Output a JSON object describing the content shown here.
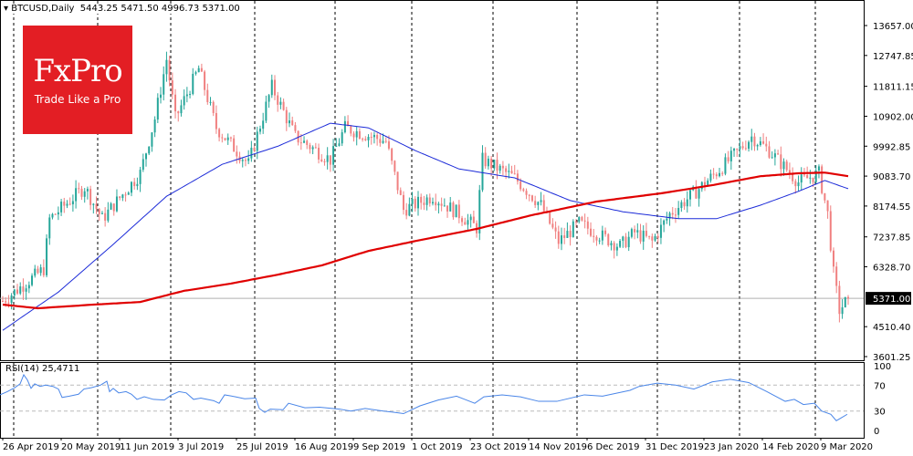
{
  "header": {
    "symbol": "BTCUSD,Daily",
    "open": "5443.25",
    "high": "5471.50",
    "low": "4996.73",
    "close": "5371.00"
  },
  "logo": {
    "brand": "FxPro",
    "tagline": "Trade Like a Pro"
  },
  "colors": {
    "bull": "#26a69a",
    "bear": "#f08080",
    "ma_fast": "#1c2bd8",
    "ma_slow": "#e00000",
    "rsi": "#4a86e8",
    "logo_bg": "#e31e24"
  },
  "chart_data": {
    "type": "candlestick",
    "title": "BTCUSD,Daily",
    "price_axis_ticks": [
      "13657.00",
      "12747.85",
      "11811.15",
      "10902.00",
      "9992.85",
      "9083.70",
      "8174.55",
      "7237.85",
      "6328.70",
      "4510.40",
      "3601.25"
    ],
    "ylim": [
      3601.25,
      13657.0
    ],
    "current_price": "5371.00",
    "x_tick_labels": [
      "26 Apr 2019",
      "20 May 2019",
      "11 Jun 2019",
      "3 Jul 2019",
      "25 Jul 2019",
      "16 Aug 2019",
      "9 Sep 2019",
      "1 Oct 2019",
      "23 Oct 2019",
      "14 Nov 2019",
      "6 Dec 2019",
      "31 Dec 2019",
      "23 Jan 2020",
      "14 Feb 2020",
      "9 Mar 2020"
    ],
    "bars_total": 290,
    "close_keypoints": [
      [
        0,
        5290
      ],
      [
        14,
        6260
      ],
      [
        16,
        7780
      ],
      [
        28,
        8750
      ],
      [
        34,
        7780
      ],
      [
        47,
        9170
      ],
      [
        52,
        10830
      ],
      [
        56,
        12630
      ],
      [
        59,
        10830
      ],
      [
        67,
        12350
      ],
      [
        73,
        10550
      ],
      [
        84,
        9450
      ],
      [
        92,
        11800
      ],
      [
        100,
        10280
      ],
      [
        112,
        9580
      ],
      [
        117,
        10550
      ],
      [
        131,
        10140
      ],
      [
        137,
        8060
      ],
      [
        147,
        8480
      ],
      [
        156,
        7930
      ],
      [
        162,
        7510
      ],
      [
        164,
        9580
      ],
      [
        175,
        9030
      ],
      [
        184,
        8200
      ],
      [
        190,
        7090
      ],
      [
        197,
        7650
      ],
      [
        211,
        6950
      ],
      [
        216,
        7370
      ],
      [
        222,
        7090
      ],
      [
        228,
        7930
      ],
      [
        237,
        8620
      ],
      [
        247,
        9450
      ],
      [
        256,
        10280
      ],
      [
        262,
        9860
      ],
      [
        272,
        8900
      ],
      [
        279,
        9170
      ],
      [
        282,
        7930
      ],
      [
        284,
        6120
      ],
      [
        286,
        5010
      ],
      [
        289,
        5371
      ]
    ],
    "ma_fast": {
      "name": "MA fast (blue)",
      "keypoints": [
        [
          0,
          4400
        ],
        [
          19,
          5560
        ],
        [
          37,
          6950
        ],
        [
          56,
          8470
        ],
        [
          75,
          9440
        ],
        [
          94,
          9990
        ],
        [
          112,
          10690
        ],
        [
          125,
          10550
        ],
        [
          141,
          9860
        ],
        [
          156,
          9300
        ],
        [
          175,
          9030
        ],
        [
          194,
          8340
        ],
        [
          212,
          8000
        ],
        [
          231,
          7790
        ],
        [
          244,
          7790
        ],
        [
          259,
          8200
        ],
        [
          272,
          8620
        ],
        [
          281,
          8950
        ],
        [
          289,
          8700
        ]
      ]
    },
    "ma_slow": {
      "name": "MA slow (red)",
      "keypoints": [
        [
          0,
          5180
        ],
        [
          12,
          5070
        ],
        [
          31,
          5180
        ],
        [
          47,
          5260
        ],
        [
          62,
          5600
        ],
        [
          78,
          5820
        ],
        [
          94,
          6090
        ],
        [
          109,
          6370
        ],
        [
          125,
          6810
        ],
        [
          141,
          7110
        ],
        [
          162,
          7480
        ],
        [
          181,
          7900
        ],
        [
          203,
          8310
        ],
        [
          225,
          8560
        ],
        [
          244,
          8830
        ],
        [
          259,
          9080
        ],
        [
          272,
          9170
        ],
        [
          281,
          9190
        ],
        [
          289,
          9080
        ]
      ]
    },
    "rsi": {
      "label": "RSI(14) 25,4711",
      "value": "25.4711",
      "levels": [
        30,
        70
      ],
      "ticks": [
        "100",
        "70",
        "30",
        "0"
      ],
      "keypoints": [
        [
          0,
          55
        ],
        [
          8,
          60
        ],
        [
          16,
          66
        ],
        [
          22,
          72
        ],
        [
          26,
          86
        ],
        [
          30,
          78
        ],
        [
          34,
          65
        ],
        [
          38,
          72
        ],
        [
          44,
          68
        ],
        [
          50,
          70
        ],
        [
          58,
          68
        ],
        [
          64,
          64
        ],
        [
          68,
          51
        ],
        [
          76,
          53
        ],
        [
          86,
          56
        ],
        [
          92,
          64
        ],
        [
          100,
          66
        ],
        [
          110,
          70
        ],
        [
          117,
          76
        ],
        [
          120,
          60
        ],
        [
          124,
          65
        ],
        [
          130,
          58
        ],
        [
          138,
          60
        ],
        [
          144,
          56
        ],
        [
          150,
          48
        ],
        [
          158,
          52
        ],
        [
          168,
          48
        ],
        [
          180,
          47
        ],
        [
          188,
          55
        ],
        [
          196,
          60
        ],
        [
          204,
          58
        ],
        [
          212,
          48
        ],
        [
          220,
          50
        ],
        [
          234,
          46
        ],
        [
          240,
          42
        ],
        [
          246,
          55
        ],
        [
          258,
          52
        ],
        [
          268,
          49
        ],
        [
          280,
          50
        ],
        [
          284,
          34
        ],
        [
          290,
          28
        ],
        [
          296,
          33
        ],
        [
          310,
          32
        ],
        [
          316,
          42
        ],
        [
          334,
          35
        ],
        [
          350,
          36
        ],
        [
          372,
          33
        ],
        [
          384,
          30
        ],
        [
          400,
          34
        ],
        [
          420,
          30
        ],
        [
          432,
          28
        ],
        [
          442,
          26
        ],
        [
          460,
          38
        ],
        [
          480,
          47
        ],
        [
          500,
          53
        ],
        [
          520,
          42
        ],
        [
          530,
          52
        ],
        [
          550,
          55
        ],
        [
          570,
          52
        ],
        [
          590,
          45
        ],
        [
          610,
          45
        ],
        [
          640,
          55
        ],
        [
          660,
          53
        ],
        [
          690,
          62
        ],
        [
          700,
          68
        ],
        [
          720,
          73
        ],
        [
          740,
          70
        ],
        [
          760,
          64
        ],
        [
          780,
          75
        ],
        [
          800,
          79
        ],
        [
          820,
          74
        ],
        [
          840,
          60
        ],
        [
          860,
          45
        ],
        [
          870,
          48
        ],
        [
          880,
          40
        ],
        [
          892,
          42
        ],
        [
          900,
          30
        ],
        [
          910,
          25
        ],
        [
          916,
          15
        ],
        [
          922,
          20
        ],
        [
          928,
          25
        ]
      ]
    }
  }
}
